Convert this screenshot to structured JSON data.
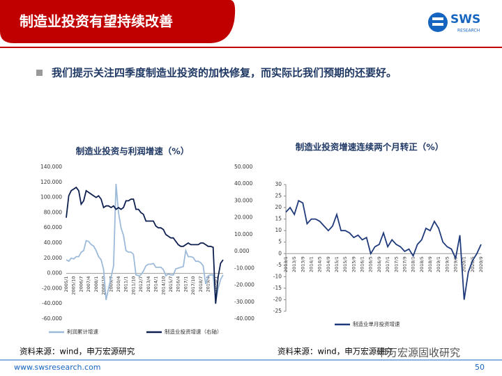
{
  "slide": {
    "title": "制造业投资有望持续改善",
    "logo_text": "SWS",
    "logo_sub": "RESEARCH",
    "bullet": "我们提示关注四季度制造业投资的加快修复，而实际比我们预期的还要好。",
    "source_left": "资料来源：wind，申万宏源研究",
    "source_right": "资料来源：wind，申万宏源研究",
    "watermark": "申万宏源固收研究",
    "footer_url": "www.swsresearch.com",
    "page_number": "50"
  },
  "chart_data": [
    {
      "type": "line",
      "title": "制造业投资与利润增速（%）",
      "categories": [
        "2005/1",
        null,
        null,
        "2005/10",
        null,
        null,
        "2006/7",
        null,
        null,
        "2007/4",
        null,
        null,
        "2008/1",
        null,
        null,
        "2008/10",
        null,
        null,
        "2009/7",
        null,
        null,
        "2010/4",
        null,
        null,
        "2011/1",
        null,
        null,
        "2011/10",
        null,
        null,
        "2012/7",
        null,
        null,
        "2013/4",
        null,
        null,
        "2014/1",
        null,
        null,
        "2014/10",
        null,
        null,
        "2015/7",
        null,
        null,
        "2016/4",
        null,
        null,
        "2017/1",
        null,
        null,
        "2017/10",
        null,
        null,
        "2018/7",
        null,
        null,
        "2019/4",
        null,
        null,
        "2020/1",
        null,
        null,
        null
      ],
      "series": [
        {
          "name": "利润累计增速",
          "color": "#9dbbd9",
          "axis": "y",
          "values": [
            18,
            16,
            20,
            19,
            22,
            22,
            28,
            30,
            43,
            42,
            38,
            36,
            30,
            22,
            18,
            5,
            -35,
            -20,
            -5,
            10,
            118,
            80,
            60,
            50,
            30,
            28,
            28,
            25,
            -2,
            -3,
            -2,
            3,
            10,
            12,
            12,
            13,
            8,
            8,
            8,
            5,
            -3,
            -1,
            -2,
            -2,
            6,
            7,
            8,
            9,
            30,
            22,
            22,
            21,
            16,
            16,
            14,
            10,
            -14,
            -3,
            -2,
            -2,
            -38,
            -20,
            -8,
            -2
          ]
        },
        {
          "name": "制造业投资增速（右轴）",
          "color": "#0c1f4f",
          "axis": "y2",
          "values": [
            20,
            33,
            36,
            37,
            38,
            36,
            28,
            30,
            36,
            35,
            34,
            33,
            32,
            33,
            31,
            26,
            27,
            27,
            26,
            27,
            25,
            26,
            25,
            26,
            30,
            30,
            31,
            31,
            25,
            25,
            23,
            22,
            18,
            18,
            18,
            18,
            15,
            14,
            14,
            13,
            10,
            9,
            8,
            8,
            6,
            4,
            3,
            3,
            4,
            5,
            4,
            4,
            4,
            4,
            5,
            5,
            4,
            3,
            3,
            2.5,
            -31,
            -15,
            -7,
            -5
          ]
        }
      ],
      "ylim": [
        -60,
        140
      ],
      "yticks": [
        {
          "value": -60,
          "label": "-60.000"
        },
        {
          "value": -40,
          "label": "-40.000"
        },
        {
          "value": -20,
          "label": "-20.000"
        },
        {
          "value": 0,
          "label": "0.000"
        },
        {
          "value": 20,
          "label": "20.000"
        },
        {
          "value": 40,
          "label": "40.000"
        },
        {
          "value": 60,
          "label": "60.000"
        },
        {
          "value": 80,
          "label": "80.000"
        },
        {
          "value": 100,
          "label": "100.000"
        },
        {
          "value": 120,
          "label": "120.000"
        },
        {
          "value": 140,
          "label": "140.000"
        }
      ],
      "y2lim": [
        -40,
        50
      ],
      "y2ticks": [
        {
          "value": -40,
          "label": "-40.000"
        },
        {
          "value": -30,
          "label": "-30.000"
        },
        {
          "value": -20,
          "label": "-20.000"
        },
        {
          "value": -10,
          "label": "-10.000"
        },
        {
          "value": 0,
          "label": "0.000"
        },
        {
          "value": 10,
          "label": "10.000"
        },
        {
          "value": 20,
          "label": "20.000"
        },
        {
          "value": 30,
          "label": "30.000"
        },
        {
          "value": 40,
          "label": "40.000"
        },
        {
          "value": 50,
          "label": "50.000"
        }
      ]
    },
    {
      "type": "line",
      "title": "制造业投资增速连续两个月转正（%）",
      "categories": [
        "2013/1",
        null,
        "2013/5",
        null,
        "2013/9",
        null,
        "2014/1",
        null,
        "2014/5",
        null,
        "2014/9",
        null,
        "2015/1",
        null,
        "2015/5",
        null,
        "2015/9",
        null,
        "2016/1",
        null,
        "2016/5",
        null,
        "2016/9",
        null,
        "2017/1",
        null,
        "2017/5",
        null,
        "2017/9",
        null,
        "2018/1",
        null,
        "2018/5",
        null,
        "2018/9",
        null,
        "2019/1",
        null,
        "2019/5",
        null,
        "2019/9",
        null,
        "2020/1",
        null,
        "2020/5",
        null,
        "2020/9"
      ],
      "series": [
        {
          "name": "制造业单月投资增速",
          "color": "#1f3a7a",
          "axis": "y",
          "values": [
            18,
            20,
            17,
            23,
            22,
            13,
            15,
            15,
            14,
            12,
            10,
            12,
            17,
            10,
            10,
            9,
            7,
            8,
            6,
            7,
            0,
            3,
            4,
            9,
            3,
            6,
            4,
            3,
            1,
            2,
            -1,
            4,
            6,
            11,
            10,
            14,
            11,
            5,
            3,
            2,
            -2,
            8,
            -20,
            -8,
            -3,
            0,
            4
          ]
        }
      ],
      "ylim": [
        -25,
        30
      ],
      "yticks": [
        -25,
        -20,
        -15,
        -10,
        -5,
        0,
        5,
        10,
        15,
        20,
        25,
        30
      ]
    }
  ]
}
